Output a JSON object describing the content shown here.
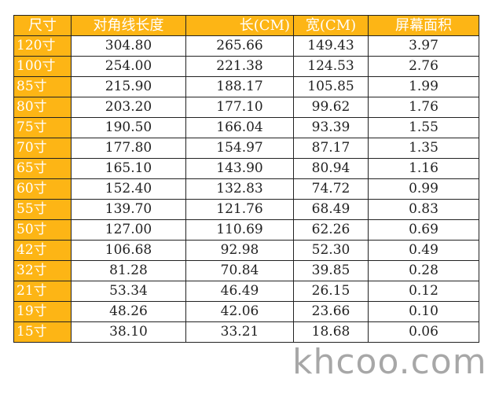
{
  "headers": [
    "尺寸",
    "对角线长度",
    "长(CM)",
    "宽(CM)",
    "屏幕面积"
  ],
  "rows": [
    [
      "120寸",
      "304.80",
      "265.66",
      "149.43",
      "3.97"
    ],
    [
      "100寸",
      "254.00",
      "221.38",
      "124.53",
      "2.76"
    ],
    [
      "85寸",
      "215.90",
      "188.17",
      "105.85",
      "1.99"
    ],
    [
      "80寸",
      "203.20",
      "177.10",
      "99.62",
      "1.76"
    ],
    [
      "75寸",
      "190.50",
      "166.04",
      "93.39",
      "1.55"
    ],
    [
      "70寸",
      "177.80",
      "154.97",
      "87.17",
      "1.35"
    ],
    [
      "65寸",
      "165.10",
      "143.90",
      "80.94",
      "1.16"
    ],
    [
      "60寸",
      "152.40",
      "132.83",
      "74.72",
      "0.99"
    ],
    [
      "55寸",
      "139.70",
      "121.76",
      "68.49",
      "0.83"
    ],
    [
      "50寸",
      "127.00",
      "110.69",
      "62.26",
      "0.69"
    ],
    [
      "42寸",
      "106.68",
      "92.98",
      "52.30",
      "0.49"
    ],
    [
      "32寸",
      "81.28",
      "70.84",
      "39.85",
      "0.28"
    ],
    [
      "21寸",
      "53.34",
      "46.49",
      "26.15",
      "0.12"
    ],
    [
      "19寸",
      "48.26",
      "42.06",
      "23.66",
      "0.10"
    ],
    [
      "15寸",
      "38.10",
      "33.21",
      "18.68",
      "0.06"
    ]
  ],
  "watermark": "khcoo.com",
  "colors": {
    "header_bg": "#fdb515",
    "header_text": "#ffffff"
  }
}
